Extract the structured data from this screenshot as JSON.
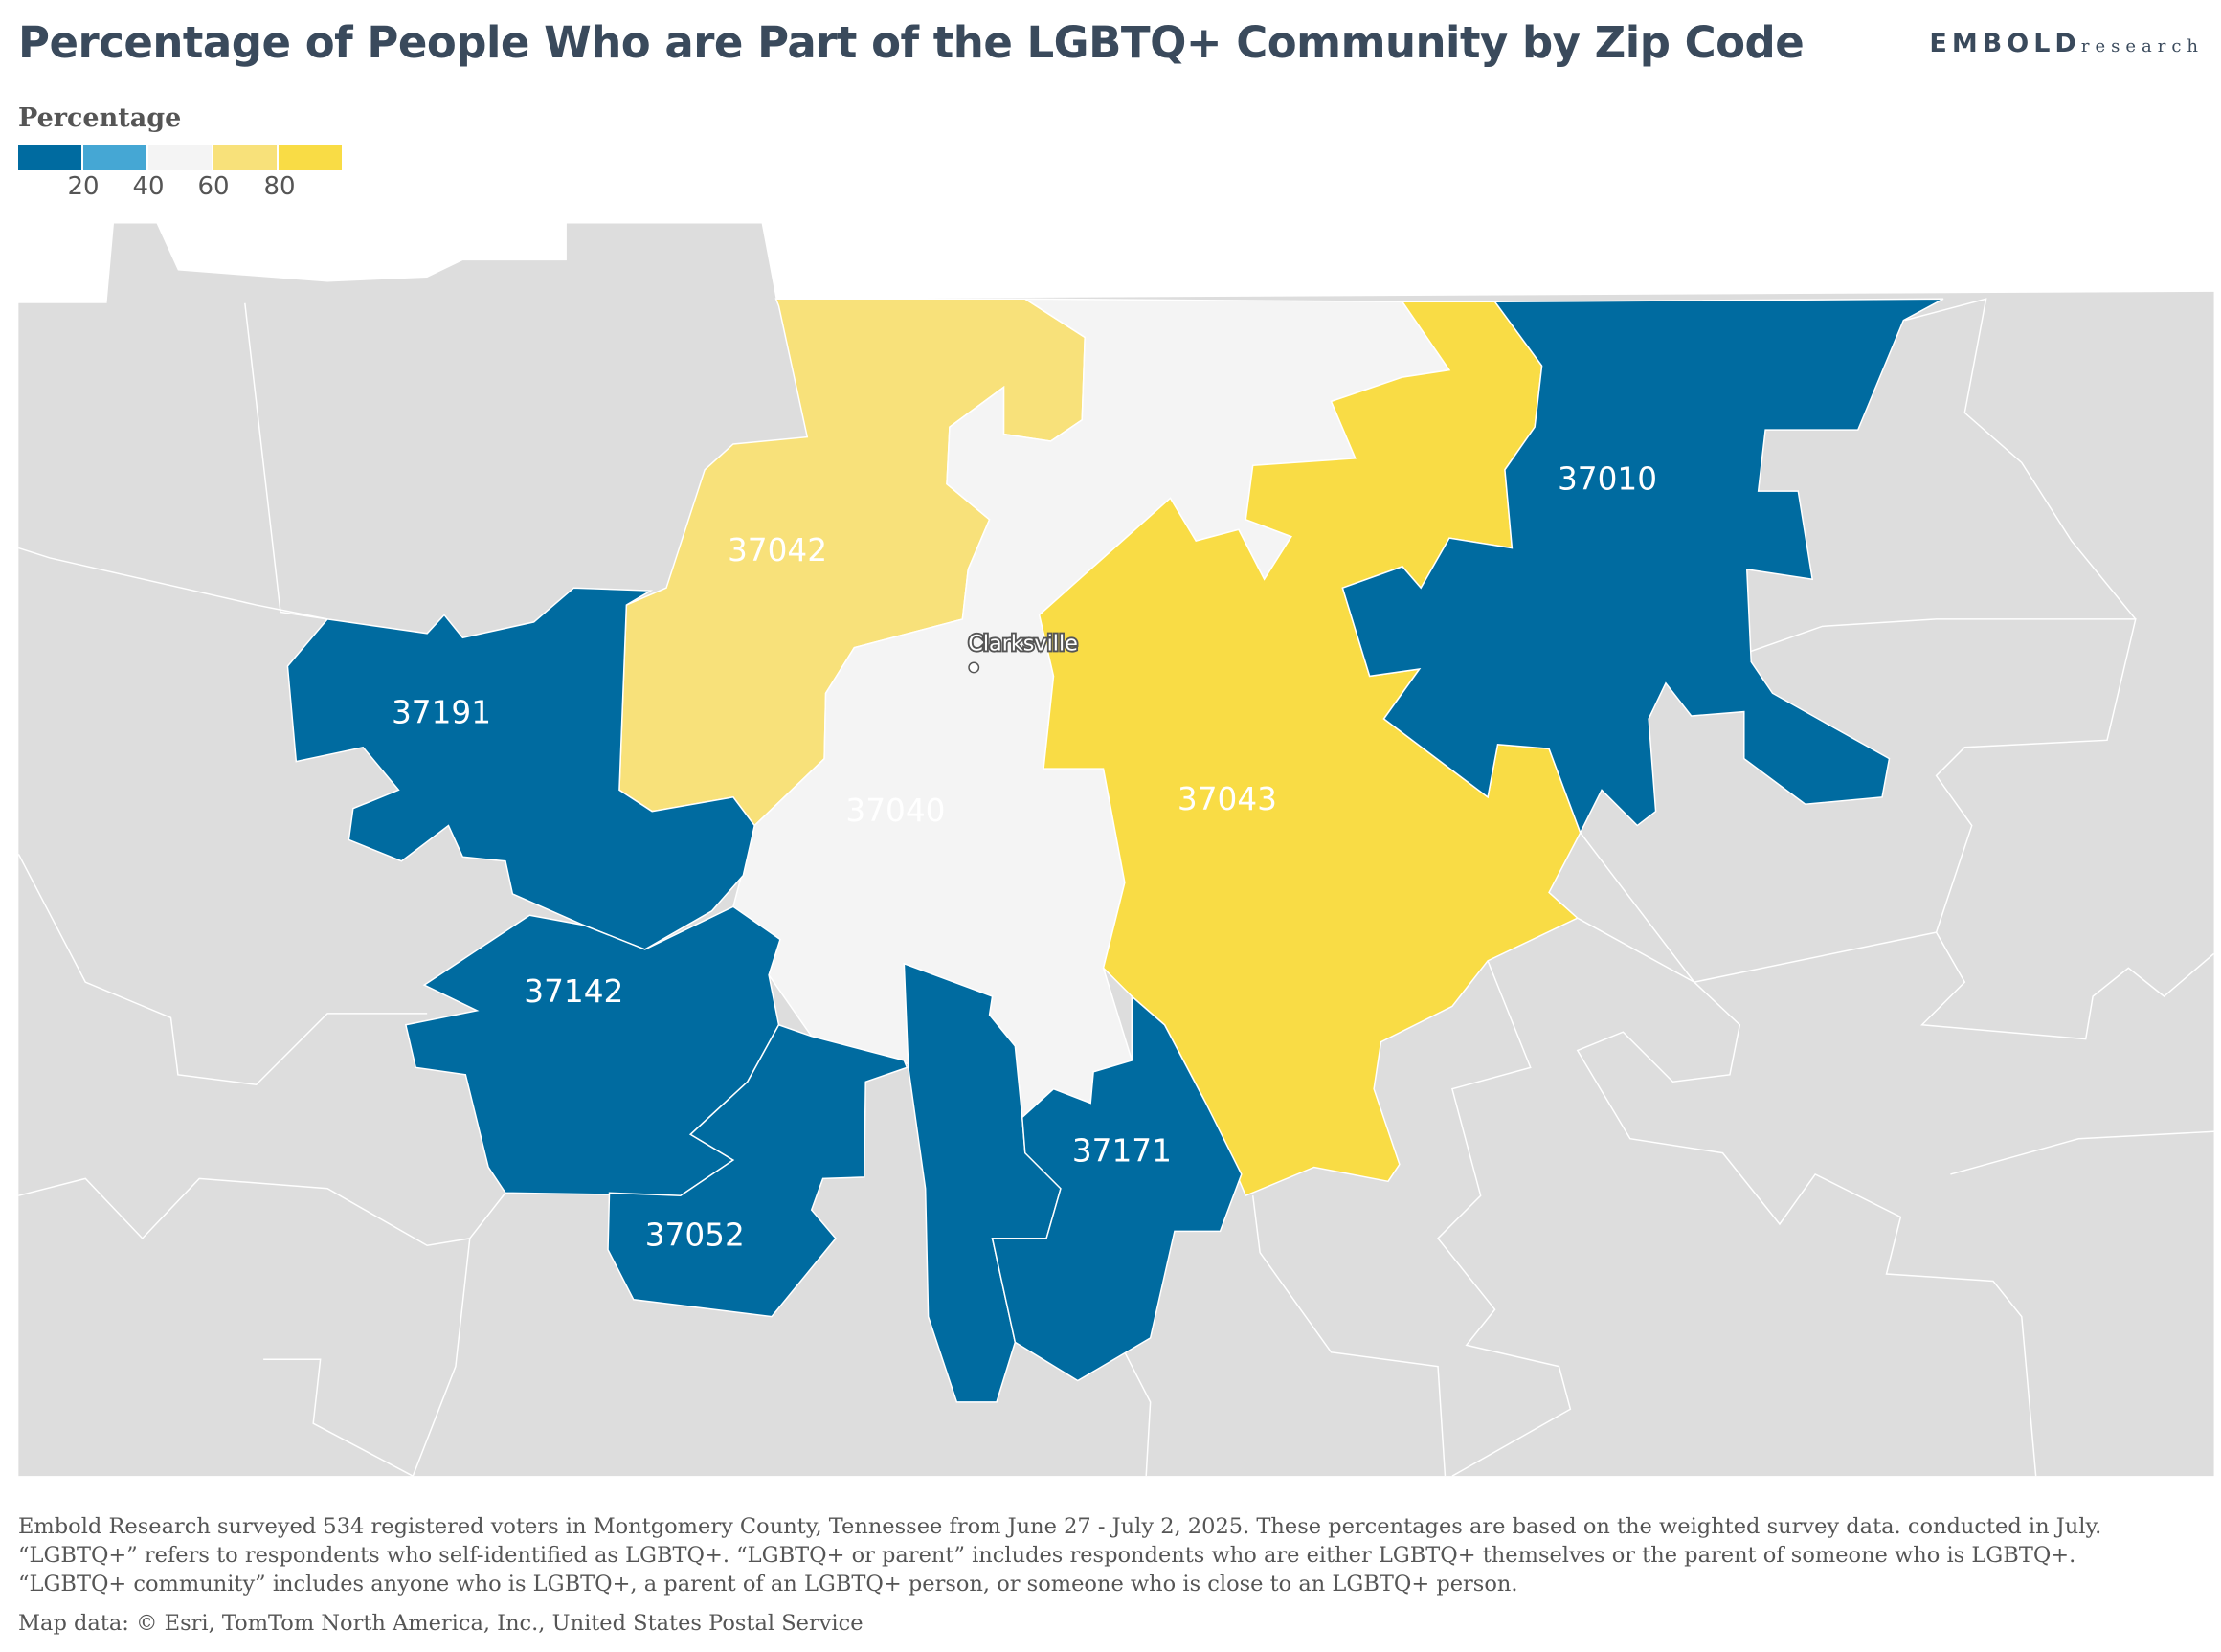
{
  "header": {
    "title": "Percentage of People Who are Part of the LGBTQ+ Community by Zip Code",
    "logo_bold": "EMBOLD",
    "logo_light": "research"
  },
  "legend": {
    "title": "Percentage",
    "bins": [
      {
        "range": "0-20",
        "color": "#006ba0"
      },
      {
        "range": "20-40",
        "color": "#45a7d4"
      },
      {
        "range": "40-60",
        "color": "#f4f4f4"
      },
      {
        "range": "60-80",
        "color": "#f8e17a"
      },
      {
        "range": "80-100",
        "color": "#f9dc45"
      }
    ],
    "ticks": [
      "20",
      "40",
      "60",
      "80"
    ]
  },
  "map": {
    "background_color": "#dddddd",
    "city_label": "Clarksville",
    "zips": [
      {
        "zip": "37042",
        "bin": "60-80"
      },
      {
        "zip": "37040",
        "bin": "40-60"
      },
      {
        "zip": "37043",
        "bin": "80-100"
      },
      {
        "zip": "37010",
        "bin": "0-20"
      },
      {
        "zip": "37191",
        "bin": "0-20"
      },
      {
        "zip": "37142",
        "bin": "0-20"
      },
      {
        "zip": "37052",
        "bin": "0-20"
      },
      {
        "zip": "37171",
        "bin": "0-20"
      }
    ]
  },
  "footer": {
    "note_1": "Embold Research surveyed 534 registered voters in Montgomery County, Tennessee from June 27 - July 2, 2025. These percentages are based on the weighted survey data. conducted in July.",
    "note_2": "“LGBTQ+” refers to respondents who self-identified as LGBTQ+. “LGBTQ+ or parent” includes respondents who are either LGBTQ+ themselves or the parent of someone who is LGBTQ+.",
    "note_3": "“LGBTQ+ community” includes anyone who is LGBTQ+, a parent of an LGBTQ+ person, or someone who is close to an LGBTQ+ person.",
    "source": "Map data: © Esri, TomTom North America, Inc., United States Postal Service"
  }
}
